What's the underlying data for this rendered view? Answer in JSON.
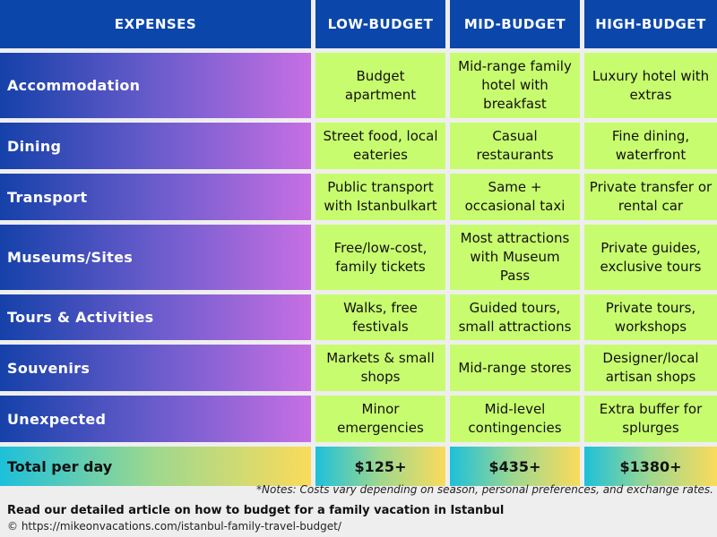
{
  "header": [
    "EXPENSES",
    "LOW-BUDGET",
    "MID-BUDGET",
    "HIGH-BUDGET"
  ],
  "rows": [
    {
      "label": "Accommodation",
      "low": "Budget apartment",
      "mid": "Mid-range family hotel with breakfast",
      "high": "Luxury hotel with extras"
    },
    {
      "label": "Dining",
      "low": "Street food, local eateries",
      "mid": "Casual restaurants",
      "high": "Fine dining, waterfront"
    },
    {
      "label": "Transport",
      "low": "Public transport with Istanbulkart",
      "mid": "Same + occasional taxi",
      "high": "Private transfer or rental car"
    },
    {
      "label": "Museums/Sites",
      "low": "Free/low-cost, family tickets",
      "mid": "Most attractions with Museum Pass",
      "high": "Private guides, exclusive tours"
    },
    {
      "label": "Tours & Activities",
      "low": "Walks, free festivals",
      "mid": "Guided tours, small attractions",
      "high": "Private tours, workshops"
    },
    {
      "label": "Souvenirs",
      "low": "Markets & small shops",
      "mid": "Mid-range stores",
      "high": "Designer/local artisan shops"
    },
    {
      "label": "Unexpected",
      "low": "Minor emergencies",
      "mid": "Mid-level contingencies",
      "high": "Extra buffer for splurges"
    }
  ],
  "total": {
    "label": "Total per day",
    "low": "$125+",
    "mid": "$435+",
    "high": "$1380+"
  },
  "note": "*Notes: Costs vary depending on season, personal preferences, and exchange rates.",
  "article": "Read our detailed article on how to budget for a family vacation in Istanbul",
  "url": "© https://mikeonvacations.com/istanbul-family-travel-budget/",
  "colors": {
    "header": "#0b47ab",
    "cell": "#c8fc6f",
    "label_start": "#1541a9",
    "label_end": "#c76fe3",
    "total_start": "#1dc0da",
    "total_end": "#fadb5b"
  }
}
